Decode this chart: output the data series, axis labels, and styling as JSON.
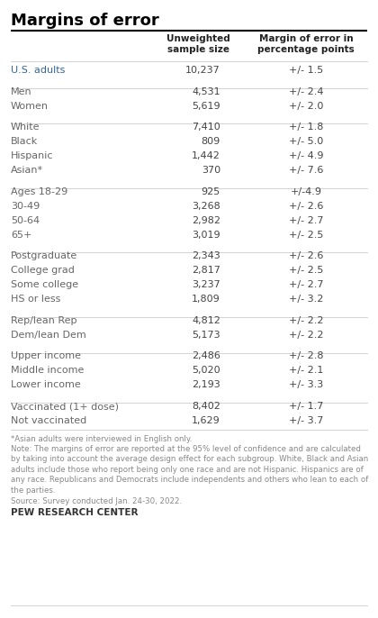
{
  "title": "Margins of error",
  "col1_header": "Unweighted\nsample size",
  "col2_header": "Margin of error in\npercentage points",
  "rows": [
    {
      "label": "U.S. adults",
      "sample": "10,237",
      "moe": "+/- 1.5",
      "spacer": false
    },
    {
      "label": "",
      "sample": "",
      "moe": "",
      "spacer": true
    },
    {
      "label": "Men",
      "sample": "4,531",
      "moe": "+/- 2.4",
      "spacer": false
    },
    {
      "label": "Women",
      "sample": "5,619",
      "moe": "+/- 2.0",
      "spacer": false
    },
    {
      "label": "",
      "sample": "",
      "moe": "",
      "spacer": true
    },
    {
      "label": "White",
      "sample": "7,410",
      "moe": "+/- 1.8",
      "spacer": false
    },
    {
      "label": "Black",
      "sample": "809",
      "moe": "+/- 5.0",
      "spacer": false
    },
    {
      "label": "Hispanic",
      "sample": "1,442",
      "moe": "+/- 4.9",
      "spacer": false
    },
    {
      "label": "Asian*",
      "sample": "370",
      "moe": "+/- 7.6",
      "spacer": false
    },
    {
      "label": "",
      "sample": "",
      "moe": "",
      "spacer": true
    },
    {
      "label": "Ages 18-29",
      "sample": "925",
      "moe": "+/-4.9",
      "spacer": false
    },
    {
      "label": "30-49",
      "sample": "3,268",
      "moe": "+/- 2.6",
      "spacer": false
    },
    {
      "label": "50-64",
      "sample": "2,982",
      "moe": "+/- 2.7",
      "spacer": false
    },
    {
      "label": "65+",
      "sample": "3,019",
      "moe": "+/- 2.5",
      "spacer": false
    },
    {
      "label": "",
      "sample": "",
      "moe": "",
      "spacer": true
    },
    {
      "label": "Postgraduate",
      "sample": "2,343",
      "moe": "+/- 2.6",
      "spacer": false
    },
    {
      "label": "College grad",
      "sample": "2,817",
      "moe": "+/- 2.5",
      "spacer": false
    },
    {
      "label": "Some college",
      "sample": "3,237",
      "moe": "+/- 2.7",
      "spacer": false
    },
    {
      "label": "HS or less",
      "sample": "1,809",
      "moe": "+/- 3.2",
      "spacer": false
    },
    {
      "label": "",
      "sample": "",
      "moe": "",
      "spacer": true
    },
    {
      "label": "Rep/lean Rep",
      "sample": "4,812",
      "moe": "+/- 2.2",
      "spacer": false
    },
    {
      "label": "Dem/lean Dem",
      "sample": "5,173",
      "moe": "+/- 2.2",
      "spacer": false
    },
    {
      "label": "",
      "sample": "",
      "moe": "",
      "spacer": true
    },
    {
      "label": "Upper income",
      "sample": "2,486",
      "moe": "+/- 2.8",
      "spacer": false
    },
    {
      "label": "Middle income",
      "sample": "5,020",
      "moe": "+/- 2.1",
      "spacer": false
    },
    {
      "label": "Lower income",
      "sample": "2,193",
      "moe": "+/- 3.3",
      "spacer": false
    },
    {
      "label": "",
      "sample": "",
      "moe": "",
      "spacer": true
    },
    {
      "label": "Vaccinated (1+ dose)",
      "sample": "8,402",
      "moe": "+/- 1.7",
      "spacer": false
    },
    {
      "label": "Not vaccinated",
      "sample": "1,629",
      "moe": "+/- 3.7",
      "spacer": false
    }
  ],
  "footnote_asterisk": "*Asian adults were interviewed in English only.",
  "footnote_note": "Note: The margins of error are reported at the 95% level of confidence and are calculated\nby taking into account the average design effect for each subgroup. White, Black and Asian\nadults include those who report being only one race and are not Hispanic. Hispanics are of\nany race. Republicans and Democrats include independents and others who lean to each of\nthe parties.",
  "footnote_source": "Source: Survey conducted Jan. 24-30, 2022.",
  "brand": "PEW RESEARCH CENTER",
  "title_color": "#000000",
  "header_color": "#222222",
  "data_color": "#444444",
  "us_adults_color": "#336699",
  "row_color": "#666666",
  "separator_color": "#cccccc",
  "top_line_color": "#000000",
  "footnote_color": "#888888",
  "bg_color": "#ffffff"
}
